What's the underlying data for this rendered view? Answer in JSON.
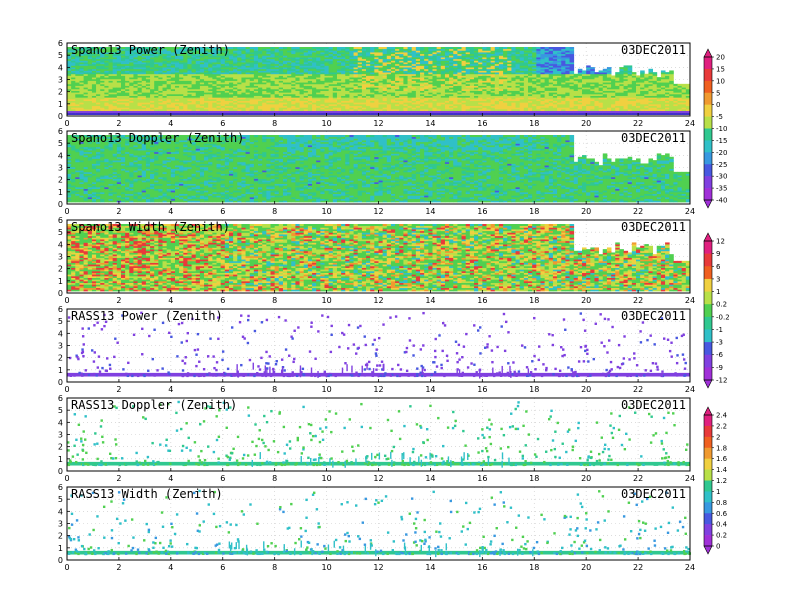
{
  "chart_data": {
    "type": "heatmap",
    "x_ticks": [
      0,
      2,
      4,
      6,
      8,
      10,
      12,
      14,
      16,
      18,
      20,
      22,
      24
    ],
    "y_ticks": [
      0,
      1,
      2,
      3,
      4,
      5,
      6
    ],
    "xlim": [
      0,
      24
    ],
    "ylim": [
      0,
      6
    ],
    "date": "03DEC2011",
    "panels": [
      {
        "title": "Spano13 Power (Zenith)",
        "colorbar": 0,
        "kind": "spano",
        "variant": "power"
      },
      {
        "title": "Spano13 Doppler (Zenith)",
        "colorbar": 0,
        "kind": "spano",
        "variant": "doppler"
      },
      {
        "title": "Spano13 Width (Zenith)",
        "colorbar": 1,
        "kind": "spano",
        "variant": "width"
      },
      {
        "title": "RASS13 Power (Zenith)",
        "colorbar": 1,
        "kind": "rass",
        "variant": "power"
      },
      {
        "title": "RASS13 Doppler (Zenith)",
        "colorbar": 2,
        "kind": "rass",
        "variant": "doppler"
      },
      {
        "title": "RASS13 Width (Zenith)",
        "colorbar": 2,
        "kind": "rass",
        "variant": "width"
      }
    ],
    "colorbars": [
      {
        "labels": [
          "20",
          "15",
          "10",
          "5",
          "0",
          "-5",
          "-10",
          "-15",
          "-20",
          "-25",
          "-30",
          "-35",
          "-40"
        ]
      },
      {
        "labels": [
          "12",
          "9",
          "6",
          "3",
          "1",
          "0.2",
          "-0.2",
          "-1",
          "-3",
          "-6",
          "-9",
          "-12"
        ]
      },
      {
        "labels": [
          "2.4",
          "2.2",
          "2",
          "1.8",
          "1.6",
          "1.4",
          "1.2",
          "1",
          "0.8",
          "0.6",
          "0.4",
          "0.2",
          "0"
        ]
      }
    ],
    "colors": {
      "scale": [
        "#e0207f",
        "#e83a3a",
        "#f06020",
        "#f09a30",
        "#f0d040",
        "#b8e048",
        "#50d050",
        "#30c890",
        "#30c0c8",
        "#3898e0",
        "#4858e0",
        "#8040e0",
        "#a030d8"
      ],
      "frame": "#000000",
      "grid": "#c8c8c8"
    }
  }
}
